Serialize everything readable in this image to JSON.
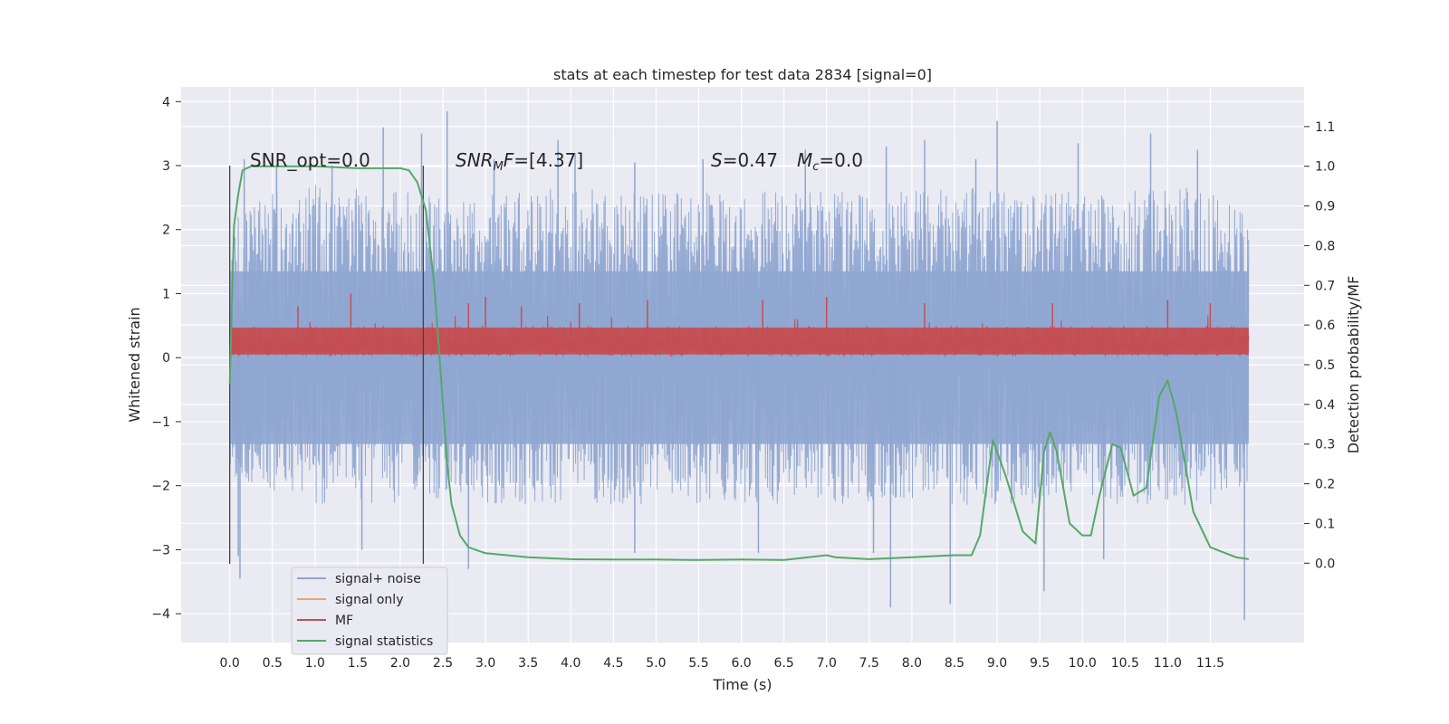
{
  "chart_data": {
    "type": "line",
    "title": "stats at each timestep for test data 2834 [signal=0]",
    "xlabel": "Time (s)",
    "ylabel": "Whitened strain",
    "y2label": "Detection probability/MF",
    "xlim": [
      -0.57,
      12.6
    ],
    "ylim": [
      -4.45,
      4.23
    ],
    "y2lim": [
      -0.2,
      1.2
    ],
    "xticks": [
      0.0,
      0.5,
      1.0,
      1.5,
      2.0,
      2.5,
      3.0,
      3.5,
      4.0,
      4.5,
      5.0,
      5.5,
      6.0,
      6.5,
      7.0,
      7.5,
      8.0,
      8.5,
      9.0,
      9.5,
      10.0,
      10.5,
      11.0,
      11.5
    ],
    "xtick_labels": [
      "0.0",
      "0.5",
      "1.0",
      "1.5",
      "2.0",
      "2.5",
      "3.0",
      "3.5",
      "4.0",
      "4.5",
      "5.0",
      "5.5",
      "6.0",
      "6.5",
      "7.0",
      "7.5",
      "8.0",
      "8.5",
      "9.0",
      "9.5",
      "10.0",
      "10.5",
      "11.0",
      "11.5"
    ],
    "yticks": [
      4,
      3,
      2,
      1,
      0,
      -1,
      -2,
      -3,
      -4
    ],
    "ytick_labels": [
      "4",
      "3",
      "2",
      "1",
      "0",
      "−1",
      "−2",
      "−3",
      "−4"
    ],
    "y2ticks": [
      1.1,
      1.0,
      0.9,
      0.8,
      0.7,
      0.6,
      0.5,
      0.4,
      0.3,
      0.2,
      0.1,
      0.0
    ],
    "y2tick_labels": [
      "1.1",
      "1.0",
      "0.9",
      "0.8",
      "0.7",
      "0.6",
      "0.5",
      "0.4",
      "0.3",
      "0.2",
      "0.1",
      "0.0"
    ],
    "grid": true,
    "legend_position": "lower-left",
    "annotations": {
      "snr_opt": "SNR_opt=0.0",
      "snr_mf_italic": "SNR",
      "snr_mf_sub": "M",
      "snr_mf_mid": "F",
      "snr_mf_rest": "=[4.37]",
      "s_italic": "S",
      "s_rest": "=0.47",
      "mc_italic": "M",
      "mc_sub": "c",
      "mc_rest": "=0.0"
    },
    "vlines": [
      0.0,
      2.27
    ],
    "series": [
      {
        "name": "signal+ noise",
        "color": "#8fa6d1",
        "axis": "left",
        "t_start": 0.0,
        "t_end": 11.95,
        "envelope_upper": [
          [
            0.0,
            2.1
          ],
          [
            0.5,
            2.6
          ],
          [
            1.0,
            2.7
          ],
          [
            1.5,
            2.7
          ],
          [
            2.0,
            2.6
          ],
          [
            2.5,
            2.5
          ],
          [
            3.0,
            2.6
          ],
          [
            3.5,
            2.6
          ],
          [
            4.0,
            2.7
          ],
          [
            4.5,
            2.6
          ],
          [
            5.0,
            2.6
          ],
          [
            5.5,
            2.6
          ],
          [
            6.0,
            2.6
          ],
          [
            6.5,
            2.7
          ],
          [
            7.0,
            2.6
          ],
          [
            7.5,
            2.6
          ],
          [
            8.0,
            2.6
          ],
          [
            8.5,
            2.7
          ],
          [
            9.0,
            2.6
          ],
          [
            9.5,
            2.6
          ],
          [
            10.0,
            2.6
          ],
          [
            10.5,
            2.6
          ],
          [
            11.0,
            2.7
          ],
          [
            11.5,
            2.6
          ],
          [
            11.95,
            2.3
          ]
        ],
        "envelope_lower": [
          [
            0.0,
            -1.8
          ],
          [
            0.5,
            -2.2
          ],
          [
            1.0,
            -2.3
          ],
          [
            1.5,
            -2.3
          ],
          [
            2.0,
            -2.3
          ],
          [
            2.5,
            -2.2
          ],
          [
            3.0,
            -2.3
          ],
          [
            3.5,
            -2.3
          ],
          [
            4.0,
            -2.3
          ],
          [
            4.5,
            -2.3
          ],
          [
            5.0,
            -2.3
          ],
          [
            5.5,
            -2.3
          ],
          [
            6.0,
            -2.3
          ],
          [
            6.5,
            -2.3
          ],
          [
            7.0,
            -2.3
          ],
          [
            7.5,
            -2.3
          ],
          [
            8.0,
            -2.3
          ],
          [
            8.5,
            -2.3
          ],
          [
            9.0,
            -2.3
          ],
          [
            9.5,
            -2.3
          ],
          [
            10.0,
            -2.3
          ],
          [
            10.5,
            -2.3
          ],
          [
            11.0,
            -2.3
          ],
          [
            11.5,
            -2.3
          ],
          [
            11.95,
            -2.0
          ]
        ],
        "spikes": [
          [
            0.17,
            3.1
          ],
          [
            0.55,
            3.0
          ],
          [
            1.2,
            3.0
          ],
          [
            1.8,
            3.6
          ],
          [
            2.25,
            3.5
          ],
          [
            2.55,
            3.85
          ],
          [
            3.1,
            3.1
          ],
          [
            3.85,
            3.4
          ],
          [
            4.05,
            3.2
          ],
          [
            4.75,
            3.05
          ],
          [
            5.55,
            3.1
          ],
          [
            6.75,
            3.25
          ],
          [
            7.7,
            3.3
          ],
          [
            8.15,
            3.4
          ],
          [
            8.75,
            3.1
          ],
          [
            9.0,
            3.7
          ],
          [
            9.95,
            3.35
          ],
          [
            10.8,
            3.5
          ],
          [
            11.35,
            3.25
          ],
          [
            0.1,
            -3.1
          ],
          [
            0.12,
            -3.45
          ],
          [
            1.55,
            -3.0
          ],
          [
            2.8,
            -3.3
          ],
          [
            4.75,
            -3.05
          ],
          [
            6.2,
            -3.05
          ],
          [
            7.55,
            -3.05
          ],
          [
            7.75,
            -3.9
          ],
          [
            8.45,
            -3.85
          ],
          [
            9.55,
            -3.65
          ],
          [
            10.25,
            -3.15
          ],
          [
            11.9,
            -4.1
          ]
        ]
      },
      {
        "name": "signal only",
        "color": "#e8a27c",
        "axis": "left",
        "values_note": "flat zero"
      },
      {
        "name": "MF",
        "color": "#c44e52",
        "axis": "left",
        "t_start": 0.0,
        "t_end": 11.95,
        "baseline": 0.02,
        "upper_typical": 0.5,
        "peaks": [
          [
            0.8,
            0.8
          ],
          [
            1.42,
            1.0
          ],
          [
            2.8,
            0.85
          ],
          [
            3.0,
            0.95
          ],
          [
            3.42,
            0.8
          ],
          [
            4.1,
            0.85
          ],
          [
            4.9,
            0.9
          ],
          [
            6.25,
            0.9
          ],
          [
            7.0,
            0.95
          ],
          [
            8.15,
            0.85
          ],
          [
            9.65,
            0.85
          ],
          [
            11.0,
            0.9
          ],
          [
            11.5,
            0.85
          ]
        ]
      },
      {
        "name": "signal statistics",
        "color": "#55a868",
        "axis": "right",
        "x": [
          0.0,
          0.05,
          0.1,
          0.15,
          0.25,
          0.5,
          1.0,
          1.5,
          2.0,
          2.1,
          2.2,
          2.3,
          2.4,
          2.5,
          2.55,
          2.6,
          2.7,
          2.8,
          3.0,
          3.5,
          4.0,
          4.5,
          5.0,
          5.5,
          6.0,
          6.5,
          7.0,
          7.1,
          7.5,
          8.0,
          8.5,
          8.7,
          8.8,
          8.95,
          9.1,
          9.3,
          9.45,
          9.55,
          9.62,
          9.7,
          9.85,
          10.0,
          10.1,
          10.2,
          10.35,
          10.45,
          10.6,
          10.75,
          10.9,
          11.0,
          11.1,
          11.3,
          11.5,
          11.8,
          11.95
        ],
        "y": [
          0.45,
          0.85,
          0.93,
          0.99,
          1.0,
          1.0,
          1.0,
          0.995,
          0.995,
          0.99,
          0.96,
          0.89,
          0.7,
          0.4,
          0.25,
          0.15,
          0.07,
          0.04,
          0.025,
          0.015,
          0.01,
          0.009,
          0.009,
          0.008,
          0.009,
          0.008,
          0.02,
          0.015,
          0.01,
          0.015,
          0.02,
          0.02,
          0.07,
          0.31,
          0.22,
          0.08,
          0.05,
          0.28,
          0.33,
          0.28,
          0.1,
          0.07,
          0.07,
          0.17,
          0.3,
          0.29,
          0.17,
          0.19,
          0.42,
          0.46,
          0.38,
          0.13,
          0.04,
          0.015,
          0.01
        ]
      }
    ]
  }
}
